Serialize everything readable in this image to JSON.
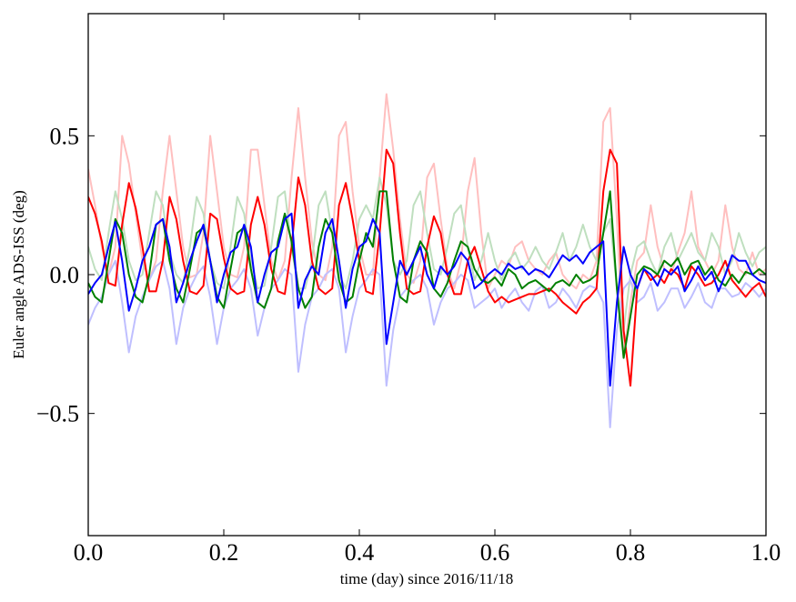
{
  "chart_data": {
    "type": "line",
    "xlabel": "time (day) since 2016/11/18",
    "ylabel": "Euler angle ADS-ISS (deg)",
    "xlim": [
      0,
      1
    ],
    "ylim": [
      -0.94,
      0.94
    ],
    "xticks": [
      {
        "value": 0,
        "label": "0.0"
      },
      0.2,
      0.4,
      0.6,
      0.8,
      {
        "value": 1,
        "label": "1.0"
      }
    ],
    "yticks": [
      {
        "value": -0.5,
        "label": "−0.5"
      },
      {
        "value": 0,
        "label": "0.0"
      },
      0.5
    ],
    "x": [
      0,
      0.01,
      0.02,
      0.03,
      0.04,
      0.05,
      0.06,
      0.07,
      0.08,
      0.09,
      0.1,
      0.11,
      0.12,
      0.13,
      0.14,
      0.15,
      0.16,
      0.17,
      0.18,
      0.19,
      0.2,
      0.21,
      0.22,
      0.23,
      0.24,
      0.25,
      0.26,
      0.27,
      0.28,
      0.29,
      0.3,
      0.31,
      0.32,
      0.33,
      0.34,
      0.35,
      0.36,
      0.37,
      0.38,
      0.39,
      0.4,
      0.41,
      0.42,
      0.43,
      0.44,
      0.45,
      0.46,
      0.47,
      0.48,
      0.49,
      0.5,
      0.51,
      0.52,
      0.53,
      0.54,
      0.55,
      0.56,
      0.57,
      0.58,
      0.59,
      0.6,
      0.61,
      0.62,
      0.63,
      0.64,
      0.65,
      0.66,
      0.67,
      0.68,
      0.69,
      0.7,
      0.71,
      0.72,
      0.73,
      0.74,
      0.75,
      0.76,
      0.77,
      0.78,
      0.79,
      0.8,
      0.81,
      0.82,
      0.83,
      0.84,
      0.85,
      0.86,
      0.87,
      0.88,
      0.89,
      0.9,
      0.91,
      0.92,
      0.93,
      0.94,
      0.95,
      0.96,
      0.97,
      0.98,
      0.99,
      1
    ],
    "series": [
      {
        "color": "#ffbfbf",
        "values": [
          0.38,
          0.25,
          0.1,
          0,
          0.1,
          0.5,
          0.4,
          0.22,
          0.05,
          -0.02,
          0.05,
          0.3,
          0.5,
          0.3,
          0.1,
          -0.01,
          0,
          0.15,
          0.5,
          0.3,
          0.1,
          0,
          -0.01,
          0.1,
          0.45,
          0.45,
          0.25,
          0.05,
          -0.02,
          0.05,
          0.35,
          0.6,
          0.35,
          0.12,
          0,
          -0.02,
          0.1,
          0.5,
          0.55,
          0.3,
          0.1,
          0,
          0,
          0.35,
          0.65,
          0.45,
          0.2,
          0,
          -0.03,
          0.05,
          0.35,
          0.4,
          0.2,
          0.02,
          -0.05,
          0.05,
          0.3,
          0.42,
          0.15,
          -0.05,
          0,
          0.05,
          0.03,
          0.1,
          0.12,
          0.05,
          0.02,
          0,
          0.05,
          0.08,
          0,
          -0.03,
          -0.05,
          0,
          -0.02,
          0.05,
          0.55,
          0.6,
          0.2,
          -0.3,
          -0.1,
          0.05,
          0.08,
          0.25,
          0.1,
          0.02,
          0,
          0.08,
          0.15,
          0.3,
          0.1,
          0.05,
          0,
          0.05,
          0.25,
          0.1,
          0.02,
          0,
          0.08,
          0,
          0.02
        ]
      },
      {
        "color": "#bfdfbf",
        "values": [
          0.1,
          0.02,
          -0.02,
          0.15,
          0.3,
          0.2,
          0.05,
          -0.02,
          0,
          0.15,
          0.3,
          0.25,
          0.08,
          0,
          -0.03,
          0.1,
          0.28,
          0.22,
          0.05,
          -0.03,
          -0.05,
          0.1,
          0.28,
          0.22,
          0.05,
          -0.05,
          -0.04,
          0.1,
          0.28,
          0.3,
          0.1,
          -0.05,
          -0.05,
          0.05,
          0.25,
          0.3,
          0.15,
          0,
          -0.05,
          0.05,
          0.2,
          0.25,
          0.2,
          0.35,
          0.25,
          0.05,
          0,
          0.05,
          0.25,
          0.3,
          0.15,
          0.02,
          0,
          0.1,
          0.22,
          0.25,
          0.1,
          -0.02,
          0.05,
          0.15,
          0.05,
          -0.02,
          0.05,
          0.08,
          0.02,
          0.05,
          0.1,
          0.05,
          0.02,
          0.08,
          0.15,
          0.05,
          0.1,
          0.18,
          0.1,
          0.05,
          0.15,
          0.2,
          -0.05,
          -0.2,
          0,
          0.1,
          0.12,
          0.05,
          0,
          0.1,
          0.15,
          0.05,
          0.1,
          0.15,
          0.08,
          0.05,
          0.15,
          0.1,
          0,
          0.05,
          0.15,
          0.08,
          0.03,
          0.08,
          0.1
        ]
      },
      {
        "color": "#bfbfff",
        "values": [
          -0.18,
          -0.12,
          -0.08,
          0,
          0.05,
          -0.1,
          -0.28,
          -0.15,
          -0.08,
          -0.02,
          0.03,
          0.05,
          -0.05,
          -0.25,
          -0.12,
          -0.05,
          0,
          0.03,
          -0.08,
          -0.25,
          -0.12,
          -0.05,
          -0.02,
          0.02,
          -0.05,
          -0.22,
          -0.12,
          -0.05,
          -0.02,
          0.02,
          0,
          -0.35,
          -0.18,
          -0.08,
          -0.05,
          0,
          0.02,
          -0.05,
          -0.28,
          -0.15,
          -0.05,
          -0.02,
          0.02,
          0,
          -0.4,
          -0.2,
          -0.08,
          -0.05,
          -0.02,
          0,
          -0.05,
          -0.18,
          -0.1,
          -0.05,
          -0.03,
          0,
          -0.02,
          -0.12,
          -0.1,
          -0.08,
          -0.05,
          -0.12,
          -0.08,
          -0.05,
          -0.1,
          -0.13,
          -0.06,
          -0.04,
          -0.12,
          -0.1,
          -0.05,
          -0.08,
          -0.12,
          -0.06,
          -0.04,
          -0.05,
          -0.1,
          -0.55,
          -0.2,
          -0.05,
          -0.02,
          -0.1,
          -0.08,
          -0.03,
          -0.13,
          -0.1,
          -0.05,
          -0.05,
          -0.12,
          -0.08,
          -0.03,
          -0.1,
          -0.12,
          -0.05,
          -0.05,
          -0.08,
          -0.07,
          -0.03,
          -0.05,
          -0.08,
          -0.05
        ]
      },
      {
        "color": "#ff0000",
        "values": [
          0.28,
          0.22,
          0.12,
          -0.03,
          -0.04,
          0.18,
          0.33,
          0.24,
          0.1,
          -0.06,
          -0.06,
          0.05,
          0.28,
          0.2,
          0.05,
          -0.06,
          -0.07,
          -0.04,
          0.22,
          0.2,
          0.06,
          -0.05,
          -0.07,
          -0.06,
          0.18,
          0.28,
          0.18,
          0.02,
          -0.06,
          -0.07,
          0.1,
          0.35,
          0.25,
          0.05,
          -0.05,
          -0.07,
          -0.05,
          0.25,
          0.33,
          0.2,
          0.05,
          -0.06,
          -0.07,
          0.15,
          0.45,
          0.4,
          0.15,
          -0.05,
          -0.07,
          -0.06,
          0.1,
          0.21,
          0.15,
          0,
          -0.07,
          -0.07,
          0.05,
          0.1,
          0.02,
          -0.06,
          -0.1,
          -0.08,
          -0.1,
          -0.09,
          -0.08,
          -0.07,
          -0.07,
          -0.06,
          -0.05,
          -0.07,
          -0.1,
          -0.12,
          -0.14,
          -0.1,
          -0.08,
          -0.05,
          0.3,
          0.45,
          0.4,
          -0.2,
          -0.4,
          -0.05,
          0.02,
          -0.02,
          0,
          -0.03,
          0.02,
          0,
          -0.05,
          0.03,
          0,
          -0.04,
          -0.03,
          0,
          0.05,
          -0.02,
          -0.05,
          -0.08,
          -0.05,
          -0.03,
          -0.08
        ]
      },
      {
        "color": "#008000",
        "values": [
          -0.03,
          -0.08,
          -0.1,
          0.05,
          0.2,
          0.15,
          0,
          -0.08,
          -0.1,
          0,
          0.18,
          0.2,
          0.05,
          -0.05,
          -0.1,
          0.02,
          0.15,
          0.17,
          0.05,
          -0.08,
          -0.12,
          0.02,
          0.15,
          0.17,
          0.02,
          -0.1,
          -0.12,
          -0.05,
          0.12,
          0.22,
          0.12,
          -0.05,
          -0.12,
          -0.08,
          0.1,
          0.2,
          0.15,
          -0.02,
          -0.1,
          -0.08,
          0.05,
          0.15,
          0.1,
          0.3,
          0.3,
          0.05,
          -0.08,
          -0.1,
          0.05,
          0.12,
          0.08,
          -0.05,
          -0.08,
          -0.03,
          0.05,
          0.12,
          0.1,
          0.02,
          -0.02,
          -0.03,
          -0.01,
          -0.04,
          0.02,
          0,
          -0.05,
          -0.03,
          -0.02,
          -0.04,
          -0.06,
          -0.03,
          -0.02,
          -0.04,
          0,
          -0.03,
          -0.02,
          0,
          0.15,
          0.3,
          -0.05,
          -0.3,
          -0.15,
          0,
          0.03,
          0.02,
          0,
          0.05,
          0.03,
          0.06,
          0,
          0.04,
          0.05,
          0,
          0.03,
          -0.02,
          -0.04,
          0,
          -0.03,
          0.01,
          0,
          0.02,
          0
        ]
      },
      {
        "color": "#0000ff",
        "values": [
          -0.07,
          -0.03,
          0,
          0.1,
          0.19,
          0.05,
          -0.13,
          -0.05,
          0.05,
          0.1,
          0.18,
          0.2,
          0.1,
          -0.1,
          -0.03,
          0.05,
          0.12,
          0.18,
          0.05,
          -0.1,
          0,
          0.08,
          0.1,
          0.18,
          0.1,
          -0.1,
          0,
          0.08,
          0.1,
          0.2,
          0.22,
          -0.12,
          -0.02,
          0.03,
          0,
          0.15,
          0.2,
          0.05,
          -0.12,
          0.02,
          0.1,
          0.12,
          0.2,
          0.15,
          -0.25,
          -0.1,
          0.05,
          0,
          0.05,
          0.1,
          0,
          -0.05,
          0.03,
          0,
          0.03,
          0.08,
          0.05,
          -0.05,
          -0.03,
          0,
          0.02,
          0,
          0.04,
          0.02,
          0.03,
          0,
          0.02,
          0.01,
          -0.01,
          0.03,
          0.07,
          0.05,
          0.07,
          0.04,
          0.08,
          0.1,
          0.12,
          -0.4,
          -0.1,
          0.1,
          0,
          -0.05,
          0.02,
          0,
          -0.04,
          0.02,
          0,
          0.03,
          -0.06,
          -0.02,
          0.03,
          -0.02,
          0.01,
          -0.06,
          0,
          0.07,
          0.05,
          0.05,
          0,
          -0.02,
          -0.03
        ]
      }
    ]
  }
}
